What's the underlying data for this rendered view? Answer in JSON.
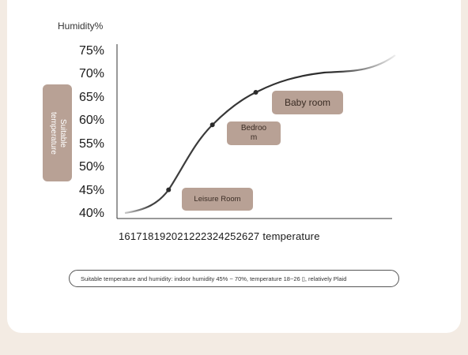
{
  "chart_data": {
    "type": "line",
    "ylabel": "Humidity%",
    "xlabel": "temperature",
    "y_ticks": [
      "75%",
      "70%",
      "65%",
      "60%",
      "55%",
      "50%",
      "45%",
      "40%"
    ],
    "x_ticks_text": "161718192021222324252627",
    "ylim": [
      40,
      75
    ],
    "series": [
      {
        "values": [
          {
            "y": 40
          },
          {
            "y": 45
          },
          {
            "y": 59
          },
          {
            "y": 66
          },
          {
            "y": 70
          },
          {
            "y": 73
          }
        ],
        "markers": [
          45,
          59,
          66
        ]
      }
    ],
    "annotations": [
      "Leisure Room",
      "Bedroo\nm",
      "Baby room"
    ],
    "side_label": "Suitable\ntemperature",
    "line_color": "#2b2b2b",
    "badge_color": "#b8a195"
  },
  "note": "Suitable temperature and humidity: indoor humidity 45% ~ 70%, temperature 18~26 ▯, relatively Plaid"
}
